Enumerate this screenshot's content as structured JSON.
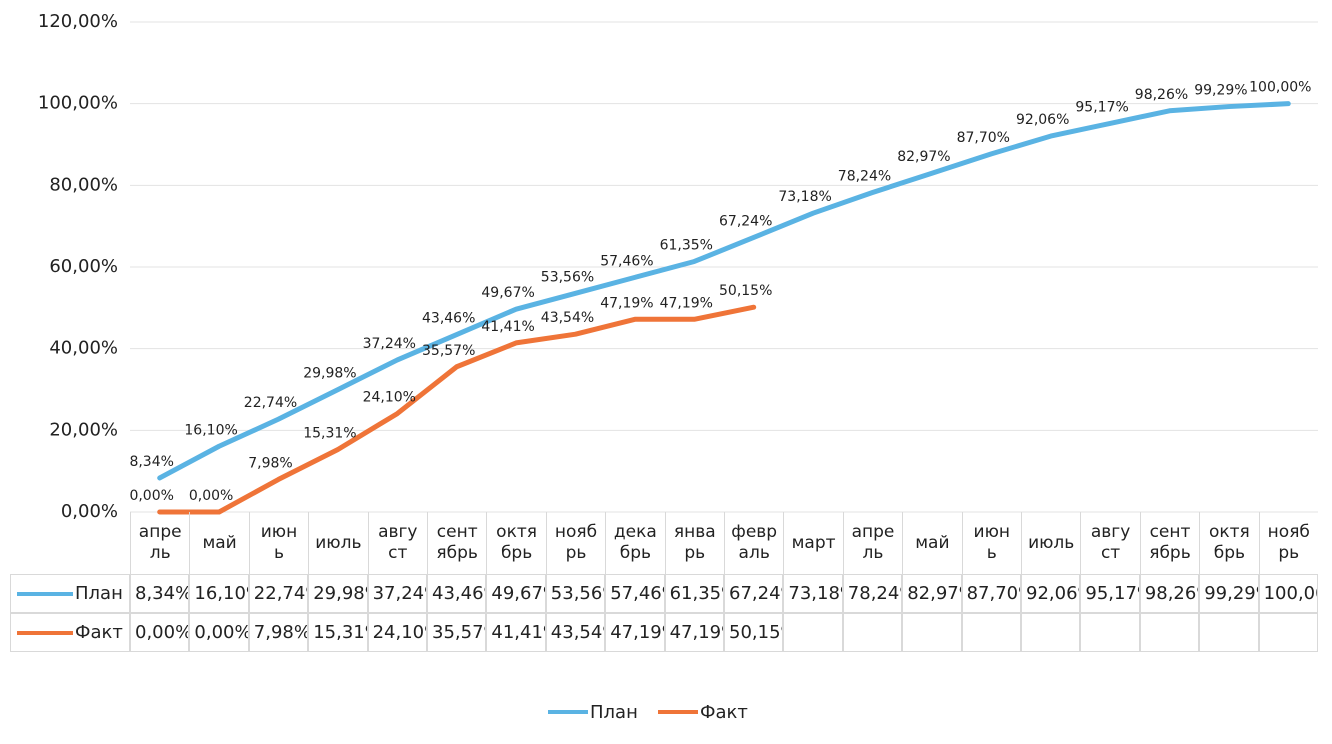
{
  "chart_data": {
    "type": "line",
    "categories": [
      "апрель",
      "май",
      "июнь",
      "июль",
      "август",
      "сентябрь",
      "октябрь",
      "ноябрь",
      "декабрь",
      "январь",
      "февраль",
      "март",
      "апрель",
      "май",
      "июнь",
      "июль",
      "август",
      "сентябрь",
      "октябрь",
      "ноябрь"
    ],
    "series": [
      {
        "name": "План",
        "color": "#5ab3e3",
        "values": [
          8.34,
          16.1,
          22.74,
          29.98,
          37.24,
          43.46,
          49.67,
          53.56,
          57.46,
          61.35,
          67.24,
          73.18,
          78.24,
          82.97,
          87.7,
          92.06,
          95.17,
          98.26,
          99.29,
          100.0
        ],
        "value_labels": [
          "8,34%",
          "16,10%",
          "22,74%",
          "29,98%",
          "37,24%",
          "43,46%",
          "49,67%",
          "53,56%",
          "57,46%",
          "61,35%",
          "67,24%",
          "73,18%",
          "78,24%",
          "82,97%",
          "87,70%",
          "92,06%",
          "95,17%",
          "98,26%",
          "99,29%",
          "100,00%"
        ]
      },
      {
        "name": "Факт",
        "color": "#ef7438",
        "values": [
          0.0,
          0.0,
          7.98,
          15.31,
          24.1,
          35.57,
          41.41,
          43.54,
          47.19,
          47.19,
          50.15,
          null,
          null,
          null,
          null,
          null,
          null,
          null,
          null,
          null
        ],
        "value_labels": [
          "0,00%",
          "0,00%",
          "7,98%",
          "15,31%",
          "24,10%",
          "35,57%",
          "41,41%",
          "43,54%",
          "47,19%",
          "47,19%",
          "50,15%",
          null,
          null,
          null,
          null,
          null,
          null,
          null,
          null,
          null
        ]
      }
    ],
    "ylim": [
      0,
      120
    ],
    "yticks": [
      {
        "value": 0,
        "label": "0,00%"
      },
      {
        "value": 20,
        "label": "20,00%"
      },
      {
        "value": 40,
        "label": "40,00%"
      },
      {
        "value": 60,
        "label": "60,00%"
      },
      {
        "value": 80,
        "label": "80,00%"
      },
      {
        "value": 100,
        "label": "100,00%"
      },
      {
        "value": 120,
        "label": "120,00%"
      }
    ],
    "grid": true,
    "data_table": true,
    "legend": "bottom"
  }
}
